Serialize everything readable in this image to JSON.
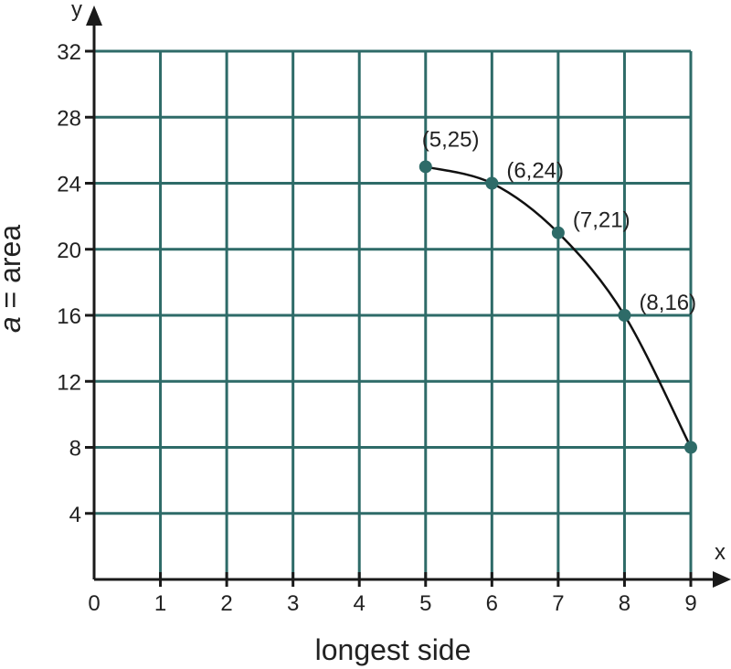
{
  "chart_data": {
    "type": "line",
    "xlabel": "longest side",
    "ylabel_var": "a",
    "ylabel_rest": " = area",
    "x_axis_name": "x",
    "y_axis_name": "y",
    "xlim": [
      0,
      9
    ],
    "ylim": [
      0,
      32
    ],
    "x_ticks": [
      0,
      1,
      2,
      3,
      4,
      5,
      6,
      7,
      8,
      9
    ],
    "y_ticks": [
      4,
      8,
      12,
      16,
      20,
      24,
      28,
      32
    ],
    "grid": true,
    "colors": {
      "grid": "#2e6b68",
      "point": "#2e6b68",
      "curve": "#111111"
    },
    "series": [
      {
        "points": [
          {
            "x": 5,
            "y": 25,
            "label": "(5,25)"
          },
          {
            "x": 6,
            "y": 24,
            "label": "(6,24)"
          },
          {
            "x": 7,
            "y": 21,
            "label": "(7,21)"
          },
          {
            "x": 8,
            "y": 16,
            "label": "(8,16)"
          },
          {
            "x": 9,
            "y": 8,
            "label": ""
          }
        ]
      }
    ]
  }
}
